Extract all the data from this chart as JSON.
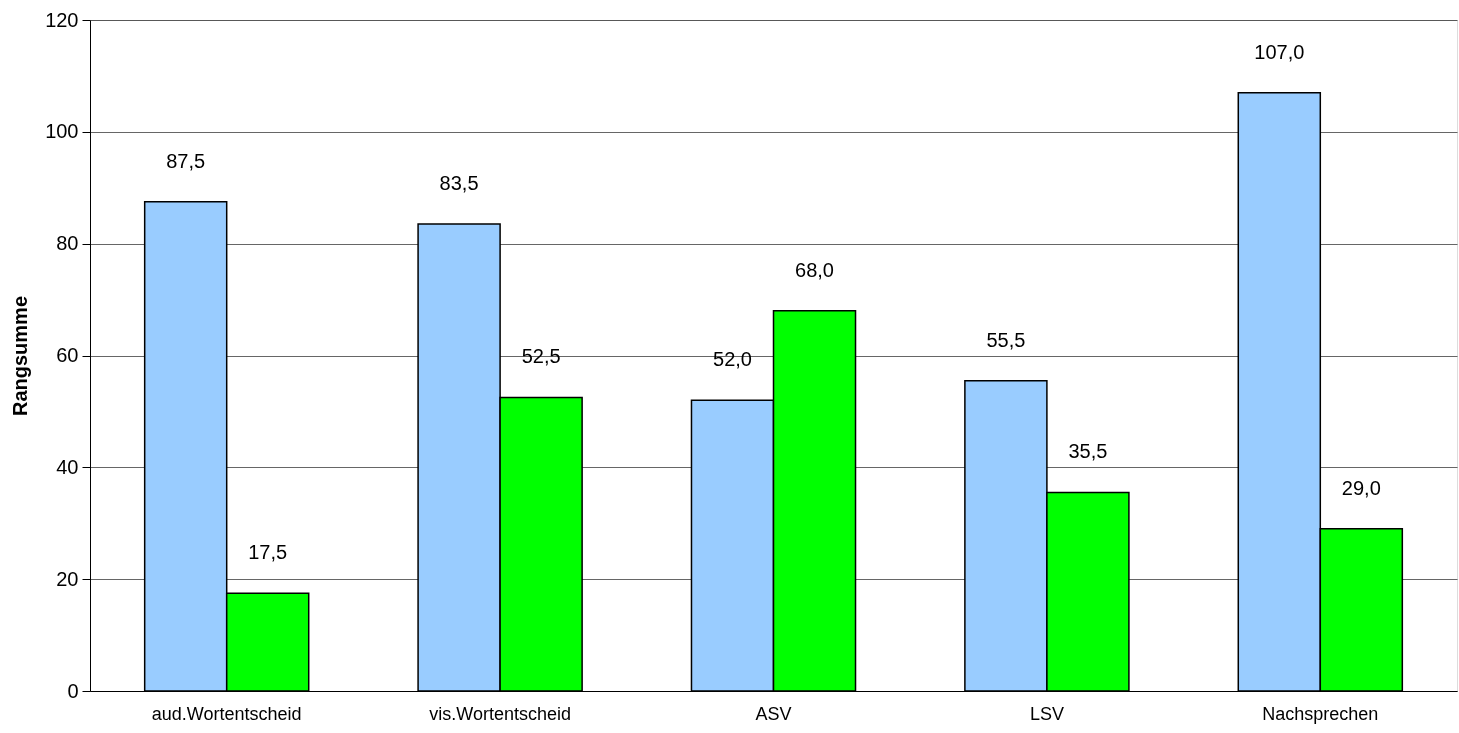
{
  "chart_data": {
    "type": "bar",
    "ylabel": "Rangsumme",
    "categories": [
      "aud.Wortentscheid",
      "vis.Wortentscheid",
      "ASV",
      "LSV",
      "Nachsprechen"
    ],
    "series": [
      {
        "color": "#99ccff",
        "values": [
          87.5,
          83.5,
          52.0,
          55.5,
          107.0
        ],
        "value_labels": [
          "87,5",
          "83,5",
          "52,0",
          "55,5",
          "107,0"
        ]
      },
      {
        "color": "#00ff00",
        "values": [
          17.5,
          52.5,
          68.0,
          35.5,
          29.0
        ],
        "value_labels": [
          "17,5",
          "52,5",
          "68,0",
          "35,5",
          "29,0"
        ]
      }
    ],
    "ylim": [
      0,
      120
    ],
    "yticks": [
      0,
      20,
      40,
      60,
      80,
      100,
      120
    ],
    "grid": "y",
    "legend": false
  }
}
